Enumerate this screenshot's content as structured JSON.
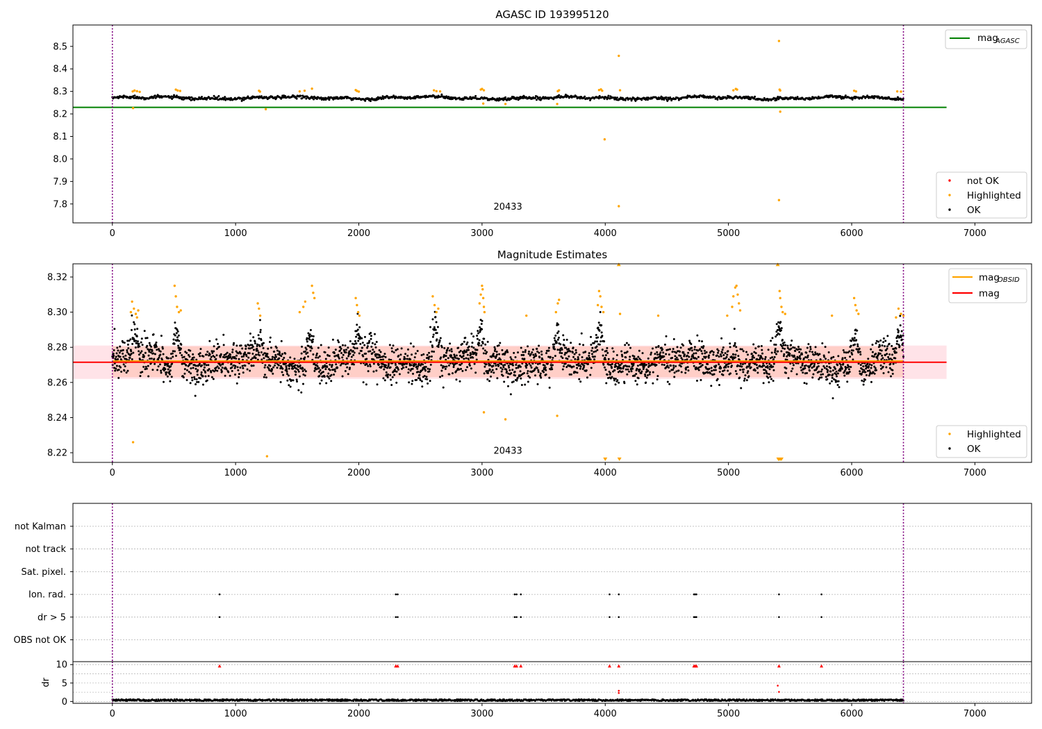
{
  "chart_data": [
    {
      "id": "agasc",
      "type": "scatter",
      "title": "AGASC ID 193995120",
      "xlim": [
        -320,
        7460
      ],
      "ylim": [
        7.716,
        8.595
      ],
      "xticks": [
        "0",
        "1000",
        "2000",
        "3000",
        "4000",
        "5000",
        "6000",
        "7000"
      ],
      "yticks": [
        "7.8",
        "7.9",
        "8.0",
        "8.1",
        "8.2",
        "8.3",
        "8.4",
        "8.5"
      ],
      "vlines": [
        0,
        6420
      ],
      "obs_label": {
        "text": "20433",
        "x": 3210,
        "y": 7.774
      },
      "hline": {
        "name": "mag_AGASC",
        "value": 8.229,
        "x": [
          -320,
          6770
        ],
        "color": "#008000"
      },
      "series": [
        {
          "name": "not OK",
          "color": "#ff0000",
          "points": []
        },
        {
          "name": "Highlighted",
          "color": "#ffa500",
          "points": [
            [
              165,
              8.3
            ],
            [
              180,
              8.304
            ],
            [
              200,
              8.301
            ],
            [
              222,
              8.298
            ],
            [
              168,
              8.226
            ],
            [
              515,
              8.308
            ],
            [
              530,
              8.304
            ],
            [
              550,
              8.302
            ],
            [
              1190,
              8.303
            ],
            [
              1198,
              8.299
            ],
            [
              1245,
              8.221
            ],
            [
              1520,
              8.3
            ],
            [
              1560,
              8.303
            ],
            [
              1620,
              8.312
            ],
            [
              1975,
              8.306
            ],
            [
              1985,
              8.302
            ],
            [
              2000,
              8.299
            ],
            [
              2610,
              8.305
            ],
            [
              2630,
              8.301
            ],
            [
              2660,
              8.3
            ],
            [
              2990,
              8.308
            ],
            [
              3000,
              8.311
            ],
            [
              3015,
              8.305
            ],
            [
              3010,
              8.246
            ],
            [
              3190,
              8.244
            ],
            [
              3610,
              8.244
            ],
            [
              3615,
              8.301
            ],
            [
              3625,
              8.305
            ],
            [
              3950,
              8.306
            ],
            [
              3965,
              8.309
            ],
            [
              3975,
              8.303
            ],
            [
              3995,
              8.087
            ],
            [
              4110,
              8.458
            ],
            [
              4120,
              8.305
            ],
            [
              4110,
              7.79
            ],
            [
              5040,
              8.305
            ],
            [
              5060,
              8.311
            ],
            [
              5070,
              8.308
            ],
            [
              5410,
              8.524
            ],
            [
              5415,
              8.308
            ],
            [
              5420,
              8.304
            ],
            [
              5420,
              8.21
            ],
            [
              5410,
              7.817
            ],
            [
              6020,
              8.303
            ],
            [
              6035,
              8.3
            ],
            [
              6370,
              8.3
            ],
            [
              6400,
              8.299
            ]
          ]
        },
        {
          "name": "OK",
          "color": "#000000",
          "points": []
        }
      ],
      "ok_band": {
        "center": 8.271,
        "range": [
          0,
          6420
        ],
        "width": 0.01
      }
    },
    {
      "id": "mag",
      "type": "scatter",
      "title": "Magnitude Estimates",
      "xlim": [
        -320,
        7460
      ],
      "ylim": [
        8.2145,
        8.3275
      ],
      "xticks": [
        "0",
        "1000",
        "2000",
        "3000",
        "4000",
        "5000",
        "6000",
        "7000"
      ],
      "yticks": [
        "8.22",
        "8.24",
        "8.26",
        "8.28",
        "8.30",
        "8.32"
      ],
      "vlines": [
        0,
        6420
      ],
      "obs_label": {
        "text": "20433",
        "x": 3210,
        "y": 8.2195
      },
      "band": {
        "low": 8.262,
        "high": 8.281,
        "x": [
          -320,
          6770
        ]
      },
      "lines": [
        {
          "name": "mag_OBSID",
          "value": 8.2722,
          "x": [
            0,
            6420
          ],
          "color": "#ffa500"
        },
        {
          "name": "mag",
          "value": 8.2715,
          "x": [
            -320,
            6770
          ],
          "color": "#ff0000"
        }
      ],
      "series": [
        {
          "name": "Highlighted",
          "color": "#ffa500",
          "points": [
            [
              150,
              8.3
            ],
            [
              160,
              8.306
            ],
            [
              175,
              8.302
            ],
            [
              190,
              8.299
            ],
            [
              200,
              8.297
            ],
            [
              210,
              8.301
            ],
            [
              168,
              8.226
            ],
            [
              505,
              8.315
            ],
            [
              515,
              8.309
            ],
            [
              525,
              8.303
            ],
            [
              540,
              8.3
            ],
            [
              555,
              8.301
            ],
            [
              1180,
              8.305
            ],
            [
              1190,
              8.302
            ],
            [
              1200,
              8.298
            ],
            [
              1255,
              8.218
            ],
            [
              1520,
              8.3
            ],
            [
              1550,
              8.303
            ],
            [
              1565,
              8.306
            ],
            [
              1620,
              8.315
            ],
            [
              1630,
              8.311
            ],
            [
              1640,
              8.308
            ],
            [
              1975,
              8.308
            ],
            [
              1985,
              8.304
            ],
            [
              1995,
              8.3
            ],
            [
              2005,
              8.298
            ],
            [
              2600,
              8.309
            ],
            [
              2615,
              8.304
            ],
            [
              2630,
              8.3
            ],
            [
              2645,
              8.302
            ],
            [
              2980,
              8.305
            ],
            [
              2990,
              8.31
            ],
            [
              3000,
              8.315
            ],
            [
              3005,
              8.313
            ],
            [
              3010,
              8.308
            ],
            [
              3015,
              8.303
            ],
            [
              3020,
              8.3
            ],
            [
              3015,
              8.243
            ],
            [
              3190,
              8.239
            ],
            [
              3360,
              8.298
            ],
            [
              3600,
              8.3
            ],
            [
              3615,
              8.305
            ],
            [
              3625,
              8.307
            ],
            [
              3610,
              8.241
            ],
            [
              3940,
              8.304
            ],
            [
              3950,
              8.312
            ],
            [
              3960,
              8.309
            ],
            [
              3970,
              8.303
            ],
            [
              3985,
              8.3
            ],
            [
              4000,
              8.2165
            ],
            [
              4110,
              8.327
            ],
            [
              4115,
              8.2165
            ],
            [
              4120,
              8.299
            ],
            [
              4430,
              8.298
            ],
            [
              4990,
              8.298
            ],
            [
              5030,
              8.303
            ],
            [
              5040,
              8.309
            ],
            [
              5055,
              8.314
            ],
            [
              5065,
              8.315
            ],
            [
              5075,
              8.31
            ],
            [
              5085,
              8.305
            ],
            [
              5095,
              8.301
            ],
            [
              5400,
              8.327
            ],
            [
              5405,
              8.2165
            ],
            [
              5410,
              8.2165
            ],
            [
              5420,
              8.2165
            ],
            [
              5430,
              8.2165
            ],
            [
              5415,
              8.312
            ],
            [
              5420,
              8.308
            ],
            [
              5430,
              8.303
            ],
            [
              5440,
              8.3
            ],
            [
              5460,
              8.299
            ],
            [
              5840,
              8.298
            ],
            [
              6020,
              8.308
            ],
            [
              6030,
              8.304
            ],
            [
              6040,
              8.301
            ],
            [
              6055,
              8.299
            ],
            [
              6360,
              8.297
            ],
            [
              6380,
              8.302
            ],
            [
              6400,
              8.299
            ],
            [
              6420,
              8.298
            ]
          ]
        },
        {
          "name": "OK",
          "color": "#000000",
          "points": []
        }
      ],
      "ok_cloud": {
        "center": 8.2715,
        "sigma": 0.0068,
        "range": [
          0,
          6420
        ],
        "bumps": [
          [
            180,
            8.292
          ],
          [
            520,
            8.294
          ],
          [
            1200,
            8.288
          ],
          [
            1600,
            8.288
          ],
          [
            1990,
            8.29
          ],
          [
            2620,
            8.295
          ],
          [
            2990,
            8.295
          ],
          [
            3600,
            8.288
          ],
          [
            3960,
            8.292
          ],
          [
            5060,
            8.285
          ],
          [
            5410,
            8.292
          ],
          [
            6030,
            8.292
          ],
          [
            6390,
            8.29
          ]
        ]
      }
    },
    {
      "id": "flags",
      "type": "scatter",
      "title": "",
      "xlim": [
        -320,
        7460
      ],
      "categories": [
        "not Kalman",
        "not track",
        "Sat. pixel.",
        "Ion. rad.",
        "dr > 5",
        "OBS not OK"
      ],
      "vlines": [
        0,
        6420
      ],
      "flag_points": {
        "Ion. rad.": [
          870,
          2300,
          2315,
          3265,
          3280,
          3315,
          4035,
          4110,
          4720,
          4730,
          4740,
          5410,
          5755
        ],
        "dr > 5": [
          870,
          2300,
          2315,
          3265,
          3280,
          3315,
          4035,
          4110,
          4720,
          4730,
          4740,
          5410,
          5755
        ]
      }
    },
    {
      "id": "dr",
      "type": "scatter",
      "title": "",
      "xlim": [
        -320,
        7460
      ],
      "ylim": [
        -0.5,
        10.8
      ],
      "xticks": [
        "0",
        "1000",
        "2000",
        "3000",
        "4000",
        "5000",
        "6000",
        "7000"
      ],
      "yticks": [
        "0",
        "5",
        "10"
      ],
      "ylabel": "dr",
      "vlines": [
        0,
        6420
      ],
      "outliers": [
        [
          870,
          9.6
        ],
        [
          2300,
          9.6
        ],
        [
          2315,
          9.6
        ],
        [
          3265,
          9.6
        ],
        [
          3280,
          9.6
        ],
        [
          3315,
          9.6
        ],
        [
          4035,
          9.6
        ],
        [
          4110,
          9.6
        ],
        [
          4720,
          9.6
        ],
        [
          4730,
          9.6
        ],
        [
          4740,
          9.6
        ],
        [
          5410,
          9.6
        ],
        [
          5755,
          9.6
        ],
        [
          4110,
          2.9
        ],
        [
          4110,
          2.3
        ],
        [
          5400,
          4.3
        ],
        [
          5410,
          2.6
        ]
      ],
      "baseline": {
        "center": 0.35,
        "spread": 0.25,
        "range": [
          0,
          6420
        ]
      }
    }
  ],
  "legends": {
    "agasc_line": {
      "label_main": "mag",
      "label_sub": "AGASC",
      "color": "#008000"
    },
    "agasc_points": [
      {
        "label": "not OK",
        "color": "#ff0000"
      },
      {
        "label": "Highlighted",
        "color": "#ffa500"
      },
      {
        "label": "OK",
        "color": "#000000"
      }
    ],
    "mag_lines": [
      {
        "label_main": "mag",
        "label_sub": "OBSID",
        "color": "#ffa500"
      },
      {
        "label_main": "mag",
        "label_sub": "",
        "color": "#ff0000"
      }
    ],
    "mag_points": [
      {
        "label": "Highlighted",
        "color": "#ffa500"
      },
      {
        "label": "OK",
        "color": "#000000"
      }
    ]
  },
  "colors": {
    "vline": "#800080",
    "grid": "#b0b0b0",
    "band_pink": "#ffc0cb",
    "band_orange": "#ffa07a"
  }
}
